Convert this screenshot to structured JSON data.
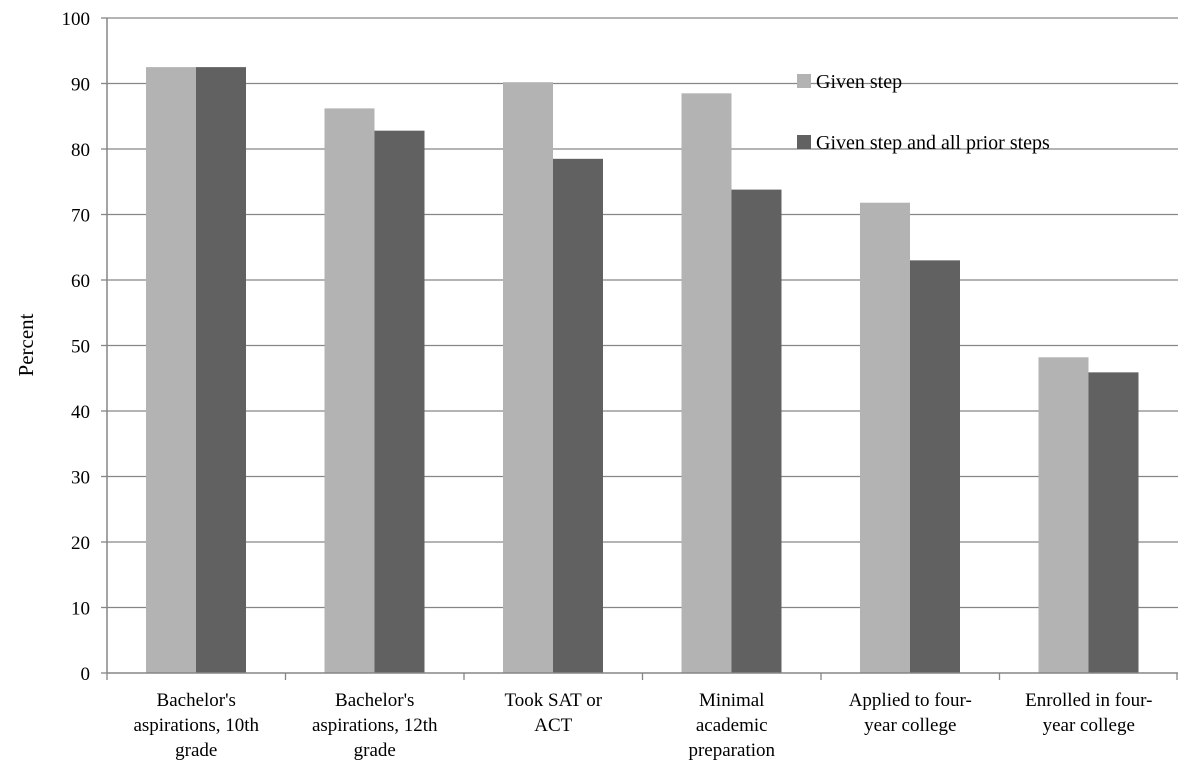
{
  "chart_data": {
    "type": "bar",
    "ylabel": "Percent",
    "xlabel": "",
    "ylim": [
      0,
      100
    ],
    "yticks": [
      0,
      10,
      20,
      30,
      40,
      50,
      60,
      70,
      80,
      90,
      100
    ],
    "grid": true,
    "legend_position": "top-right",
    "categories": [
      [
        "Bachelor's",
        "aspirations, 10th",
        "grade"
      ],
      [
        "Bachelor's",
        "aspirations, 12th",
        "grade"
      ],
      [
        "Took SAT or",
        "ACT"
      ],
      [
        "Minimal",
        "academic",
        "preparation"
      ],
      [
        "Applied to four-",
        "year college"
      ],
      [
        "Enrolled in four-",
        "year college"
      ]
    ],
    "series": [
      {
        "name": "Given step",
        "color": "#b3b3b3",
        "values": [
          92.5,
          86.2,
          90.2,
          88.5,
          71.8,
          48.2
        ]
      },
      {
        "name": "Given step and all prior steps",
        "color": "#616161",
        "values": [
          92.5,
          82.8,
          78.5,
          73.8,
          63.0,
          45.9
        ]
      }
    ]
  }
}
